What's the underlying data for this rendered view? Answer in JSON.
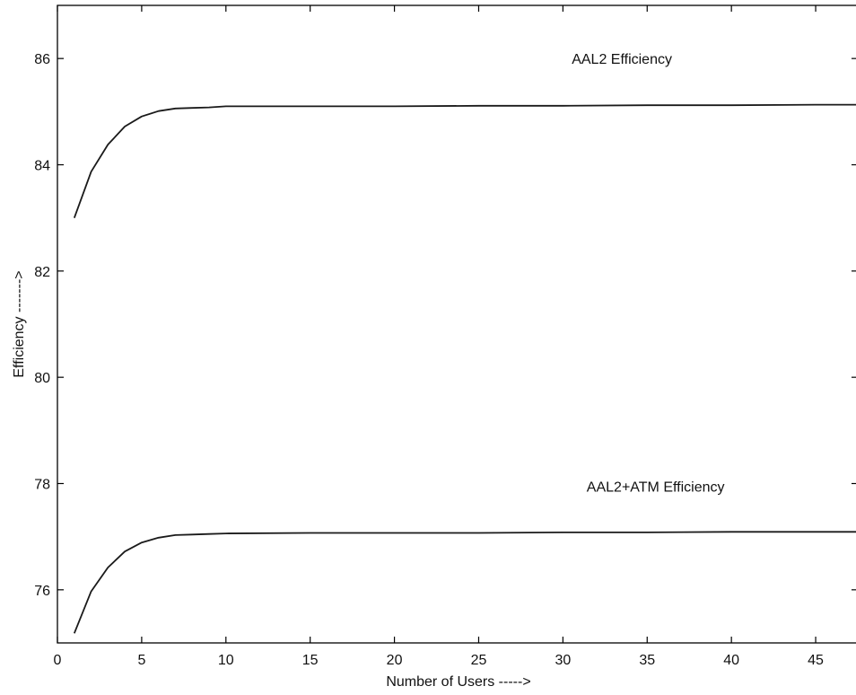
{
  "chart_data": {
    "type": "line",
    "xlabel": "Number of Users ----->",
    "ylabel": "Efficiency ------->",
    "xlim": [
      0,
      47.5
    ],
    "ylim": [
      75,
      87
    ],
    "xticks": [
      0,
      5,
      10,
      15,
      20,
      25,
      30,
      35,
      40,
      45
    ],
    "yticks": [
      76,
      78,
      80,
      82,
      84,
      86
    ],
    "grid": false,
    "colors": {
      "line": "#1a1a1a",
      "axis": "#000000"
    },
    "series": [
      {
        "x": [
          1,
          2,
          3,
          4,
          5,
          6,
          7,
          8,
          9,
          10,
          15,
          20,
          25,
          30,
          35,
          40,
          45,
          47.5
        ],
        "values": [
          83.0,
          83.87,
          84.38,
          84.72,
          84.91,
          85.01,
          85.06,
          85.07,
          85.08,
          85.1,
          85.1,
          85.1,
          85.11,
          85.11,
          85.12,
          85.12,
          85.13,
          85.13
        ]
      },
      {
        "x": [
          1,
          2,
          3,
          4,
          5,
          6,
          7,
          8,
          9,
          10,
          15,
          20,
          25,
          30,
          35,
          40,
          45,
          47.5
        ],
        "values": [
          75.18,
          75.97,
          76.42,
          76.72,
          76.89,
          76.98,
          77.03,
          77.04,
          77.05,
          77.06,
          77.07,
          77.07,
          77.07,
          77.08,
          77.08,
          77.09,
          77.09,
          77.09
        ]
      }
    ],
    "annotations": [
      {
        "text": "AAL2 Efficiency",
        "x": 33.5,
        "y": 86.0
      },
      {
        "text": "AAL2+ATM Efficiency",
        "x": 35.5,
        "y": 77.95
      }
    ]
  }
}
